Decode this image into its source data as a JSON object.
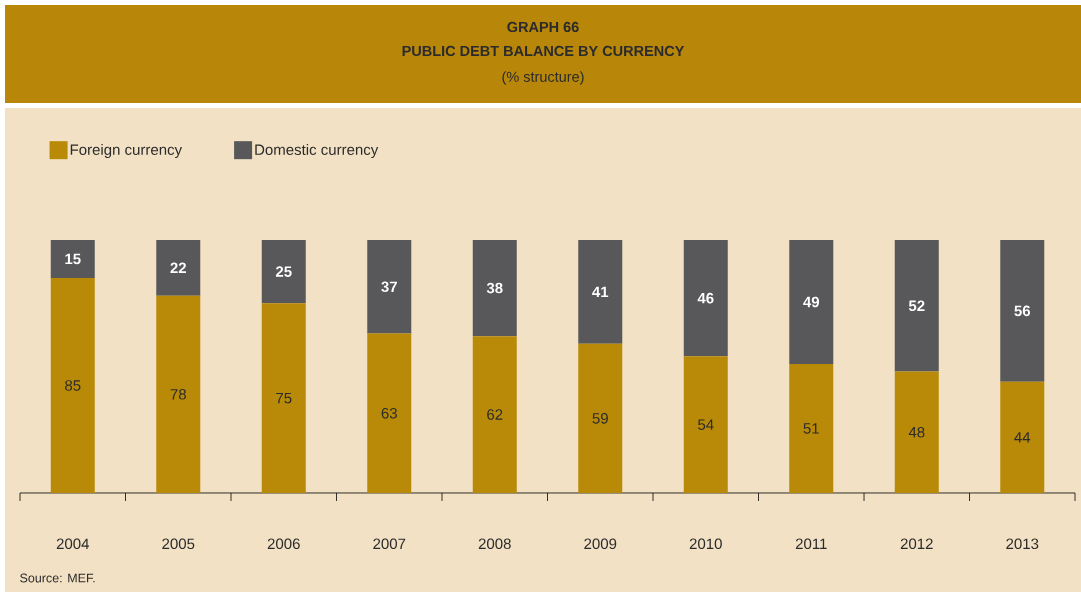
{
  "chart_data": {
    "type": "bar",
    "title": "GRAPH 66",
    "subtitle": "PUBLIC DEBT BALANCE BY CURRENCY",
    "annotations": [
      "(% structure)",
      "Source: MEF."
    ],
    "categories": [
      "2004",
      "2005",
      "2006",
      "2007",
      "2008",
      "2009",
      "2010",
      "2011",
      "2012",
      "2013"
    ],
    "stacked": true,
    "data_labels": true,
    "legend": "top left",
    "series": [
      {
        "name": "Foreign currency",
        "color": "#b88a07",
        "values": [
          85,
          78,
          75,
          63,
          62,
          59,
          54,
          51,
          48,
          44
        ]
      },
      {
        "name": "Domestic currency",
        "color": "#58585a",
        "values": [
          15,
          22,
          25,
          37,
          38,
          41,
          46,
          49,
          52,
          56
        ]
      }
    ]
  }
}
